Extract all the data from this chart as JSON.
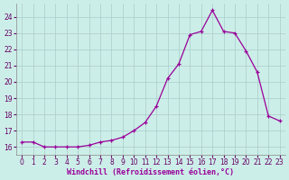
{
  "x_data": [
    0,
    1,
    2,
    3,
    4,
    5,
    6,
    7,
    8,
    9,
    10,
    11,
    12,
    13,
    14,
    15,
    16,
    17,
    18,
    19,
    20,
    21,
    22,
    23
  ],
  "y_data": [
    16.3,
    16.3,
    16.0,
    16.0,
    16.0,
    16.0,
    16.1,
    16.3,
    16.4,
    16.6,
    17.0,
    17.5,
    18.5,
    20.2,
    21.1,
    22.9,
    23.1,
    24.4,
    23.1,
    23.0,
    21.9,
    20.6,
    17.9,
    17.6
  ],
  "line_color": "#990099",
  "bg_color": "#cceee8",
  "grid_color": "#aacccc",
  "xlabel": "Windchill (Refroidissement éolien,°C)",
  "xlim": [
    -0.5,
    23.5
  ],
  "ylim": [
    15.5,
    24.8
  ],
  "yticks": [
    16,
    17,
    18,
    19,
    20,
    21,
    22,
    23,
    24
  ],
  "xticks": [
    0,
    1,
    2,
    3,
    4,
    5,
    6,
    7,
    8,
    9,
    10,
    11,
    12,
    13,
    14,
    15,
    16,
    17,
    18,
    19,
    20,
    21,
    22,
    23
  ],
  "xlabel_fontsize": 6.0,
  "tick_fontsize": 5.5
}
